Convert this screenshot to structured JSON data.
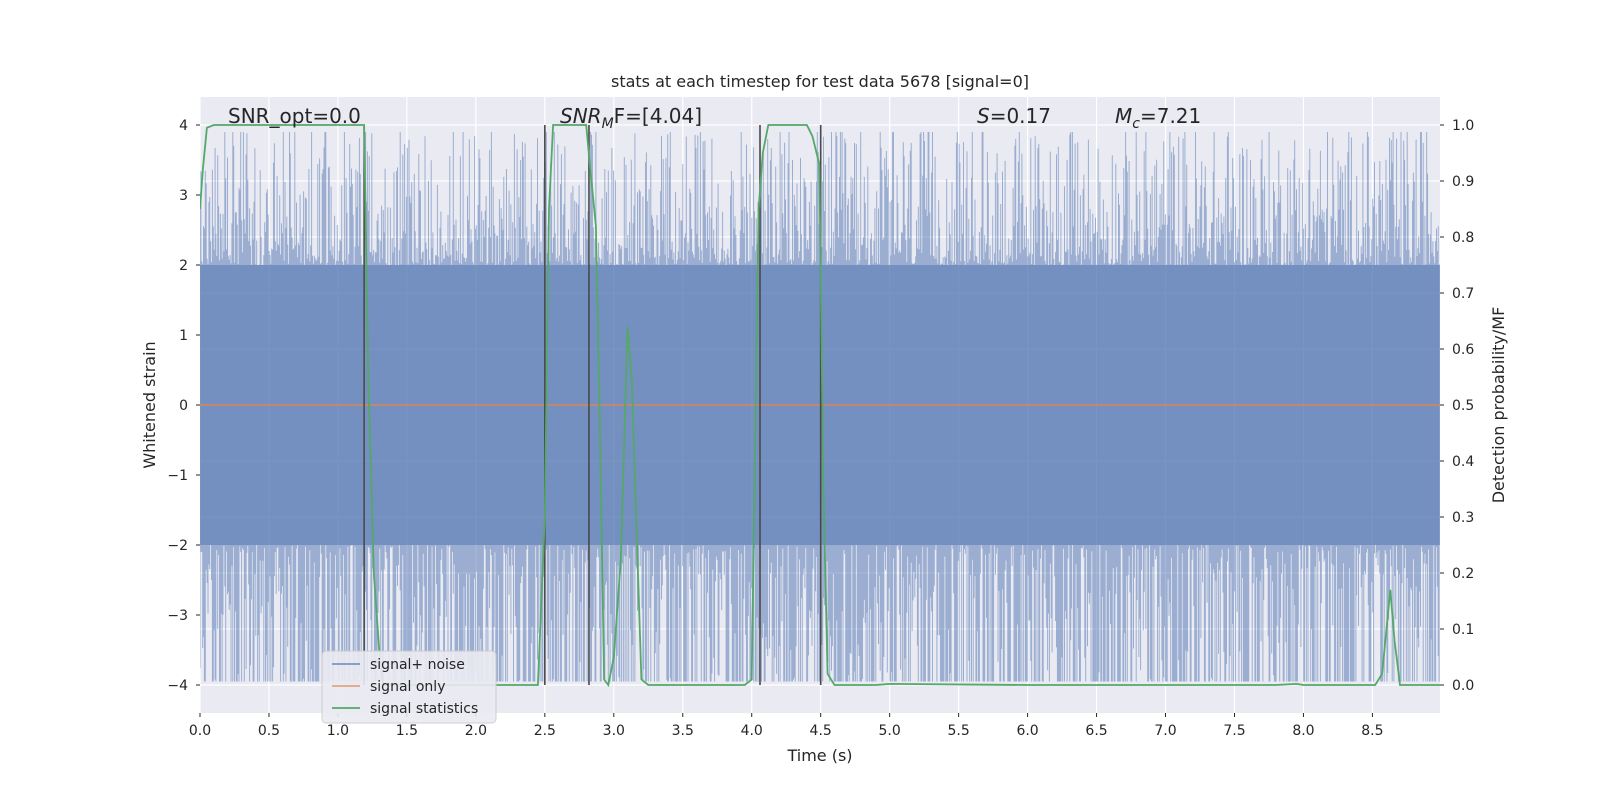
{
  "chart_data": {
    "type": "line",
    "title": "stats at each timestep for test data 5678 [signal=0]",
    "xlabel": "Time (s)",
    "ylabel_left": "Whitened strain",
    "ylabel_right": "Detection probability/MF",
    "xlim": [
      0,
      8.99
    ],
    "ylim_left": [
      -4.4,
      4.4
    ],
    "ylim_right": [
      -0.05,
      1.05
    ],
    "xticks": [
      0.0,
      0.5,
      1.0,
      1.5,
      2.0,
      2.5,
      3.0,
      3.5,
      4.0,
      4.5,
      5.0,
      5.5,
      6.0,
      6.5,
      7.0,
      7.5,
      8.0,
      8.5
    ],
    "xtick_labels": [
      "0.0",
      "0.5",
      "1.0",
      "1.5",
      "2.0",
      "2.5",
      "3.0",
      "3.5",
      "4.0",
      "4.5",
      "5.0",
      "5.5",
      "6.0",
      "6.5",
      "7.0",
      "7.5",
      "8.0",
      "8.5"
    ],
    "yticks_left": [
      -4,
      -3,
      -2,
      -1,
      0,
      1,
      2,
      3,
      4
    ],
    "ytick_labels_left": [
      "−4",
      "−3",
      "−2",
      "−1",
      "0",
      "1",
      "2",
      "3",
      "4"
    ],
    "yticks_right": [
      0.0,
      0.1,
      0.2,
      0.3,
      0.4,
      0.5,
      0.6,
      0.7,
      0.8,
      0.9,
      1.0
    ],
    "ytick_labels_right": [
      "0.0",
      "0.1",
      "0.2",
      "0.3",
      "0.4",
      "0.5",
      "0.6",
      "0.7",
      "0.8",
      "0.9",
      "1.0"
    ],
    "grid": true,
    "legend_placement": "lower-left",
    "colors": {
      "background": "#eaeaf2",
      "grid": "#ffffff",
      "signal_noise": "#4c72b0",
      "signal_only": "#dd8452",
      "signal_statistics": "#55a868",
      "markers": "#4a4a4a"
    },
    "series": [
      {
        "name": "signal+ noise",
        "kind": "noise-band",
        "core_amplitude": 2.0,
        "peak_upper_max": 3.9,
        "peak_lower_min": -3.95
      },
      {
        "name": "signal only",
        "values_constant": 0
      },
      {
        "name": "signal statistics",
        "x": [
          0.0,
          0.02,
          0.05,
          0.1,
          0.15,
          0.2,
          0.3,
          0.5,
          0.8,
          1.0,
          1.1,
          1.19,
          1.22,
          1.26,
          1.3,
          1.33,
          1.36,
          1.45,
          1.6,
          2.0,
          2.3,
          2.45,
          2.5,
          2.53,
          2.56,
          2.6,
          2.7,
          2.8,
          2.83,
          2.87,
          2.9,
          2.93,
          2.96,
          3.0,
          3.05,
          3.1,
          3.13,
          3.2,
          3.25,
          3.3,
          3.5,
          3.8,
          3.95,
          4.0,
          4.05,
          4.08,
          4.12,
          4.15,
          4.2,
          4.3,
          4.4,
          4.44,
          4.49,
          4.52,
          4.55,
          4.6,
          4.65,
          4.9,
          5.0,
          6.0,
          7.0,
          7.5,
          7.8,
          7.95,
          8.0,
          8.2,
          8.4,
          8.52,
          8.57,
          8.63,
          8.66,
          8.7,
          8.75,
          8.8,
          8.99
        ],
        "values": [
          0.85,
          0.92,
          0.995,
          1.0,
          1.0,
          1.0,
          1.0,
          1.0,
          1.0,
          1.0,
          1.0,
          1.0,
          0.55,
          0.2,
          0.06,
          0.0,
          0.0,
          0.0,
          0.0,
          0.0,
          0.0,
          0.0,
          0.3,
          0.85,
          1.0,
          1.0,
          1.0,
          1.0,
          0.92,
          0.82,
          0.45,
          0.01,
          0.0,
          0.05,
          0.22,
          0.64,
          0.55,
          0.01,
          0.0,
          0.0,
          0.0,
          0.0,
          0.0,
          0.01,
          0.85,
          0.95,
          1.0,
          1.0,
          1.0,
          1.0,
          1.0,
          0.98,
          0.93,
          0.35,
          0.02,
          0.0,
          0.0,
          0.0,
          0.002,
          0.0,
          0.0,
          0.0,
          0.0,
          0.002,
          0.0,
          0.0,
          0.0,
          0.0,
          0.02,
          0.17,
          0.08,
          0.0,
          0.0,
          0.0,
          0.0
        ]
      }
    ],
    "vertical_markers": [
      1.19,
      2.5,
      2.82,
      4.06,
      4.5
    ],
    "annotations": {
      "snr_opt": "SNR_opt=0.0",
      "snr_mf_main": "SNR",
      "snr_mf_sub": "M",
      "snr_mf_rest": "F=[4.04]",
      "s_label": "S",
      "s_value": "=0.17",
      "mc_main": "M",
      "mc_sub": "c",
      "mc_value": "=7.21"
    },
    "legend": [
      "signal+ noise",
      "signal only",
      "signal statistics"
    ]
  }
}
